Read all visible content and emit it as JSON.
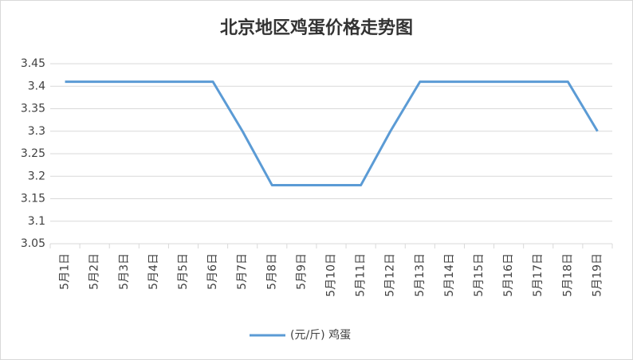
{
  "chart_data": {
    "type": "line",
    "title": "北京地区鸡蛋价格走势图",
    "categories": [
      "5月1日",
      "5月2日",
      "5月3日",
      "5月4日",
      "5月5日",
      "5月6日",
      "5月7日",
      "5月8日",
      "5月9日",
      "5月10日",
      "5月11日",
      "5月12日",
      "5月13日",
      "5月14日",
      "5月15日",
      "5月16日",
      "5月17日",
      "5月18日",
      "5月19日"
    ],
    "series": [
      {
        "name": "(元/斤) 鸡蛋",
        "color": "#5b9bd5",
        "values": [
          3.41,
          3.41,
          3.41,
          3.41,
          3.41,
          3.41,
          3.3,
          3.18,
          3.18,
          3.18,
          3.18,
          3.3,
          3.41,
          3.41,
          3.41,
          3.41,
          3.41,
          3.41,
          3.3
        ]
      }
    ],
    "ylim": [
      3.05,
      3.45
    ],
    "yticks": [
      3.05,
      3.1,
      3.15,
      3.2,
      3.25,
      3.3,
      3.35,
      3.4,
      3.45
    ],
    "grid": true,
    "legend": "bottom"
  }
}
